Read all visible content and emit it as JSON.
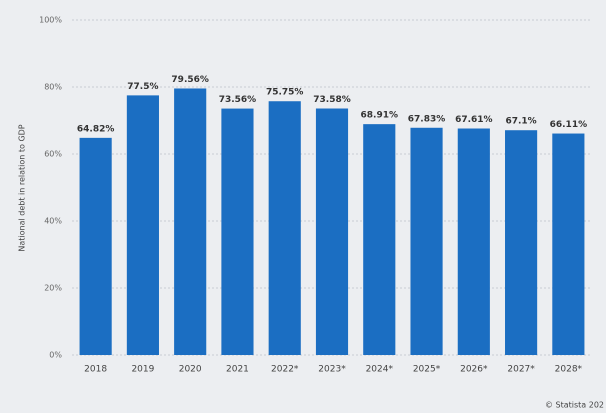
{
  "chart_data": {
    "type": "bar",
    "y_axis_label": "National debt in relation to GDP",
    "categories": [
      "2018",
      "2019",
      "2020",
      "2021",
      "2022*",
      "2023*",
      "2024*",
      "2025*",
      "2026*",
      "2027*",
      "2028*"
    ],
    "values": [
      64.82,
      77.5,
      79.56,
      73.56,
      75.75,
      73.58,
      68.91,
      67.83,
      67.61,
      67.1,
      66.11
    ],
    "value_labels": [
      "64.82%",
      "77.5%",
      "79.56%",
      "73.56%",
      "75.75%",
      "73.58%",
      "68.91%",
      "67.83%",
      "67.61%",
      "67.1%",
      "66.11%"
    ],
    "color": "#1b6ec2",
    "ylim": [
      0,
      100
    ],
    "yticks": [
      {
        "value": 0,
        "label": "0%"
      },
      {
        "value": 20,
        "label": "20%"
      },
      {
        "value": 40,
        "label": "40%"
      },
      {
        "value": 60,
        "label": "60%"
      },
      {
        "value": 80,
        "label": "80%"
      },
      {
        "value": 100,
        "label": "100%"
      }
    ],
    "grid": true,
    "source": "© Statista 202"
  }
}
